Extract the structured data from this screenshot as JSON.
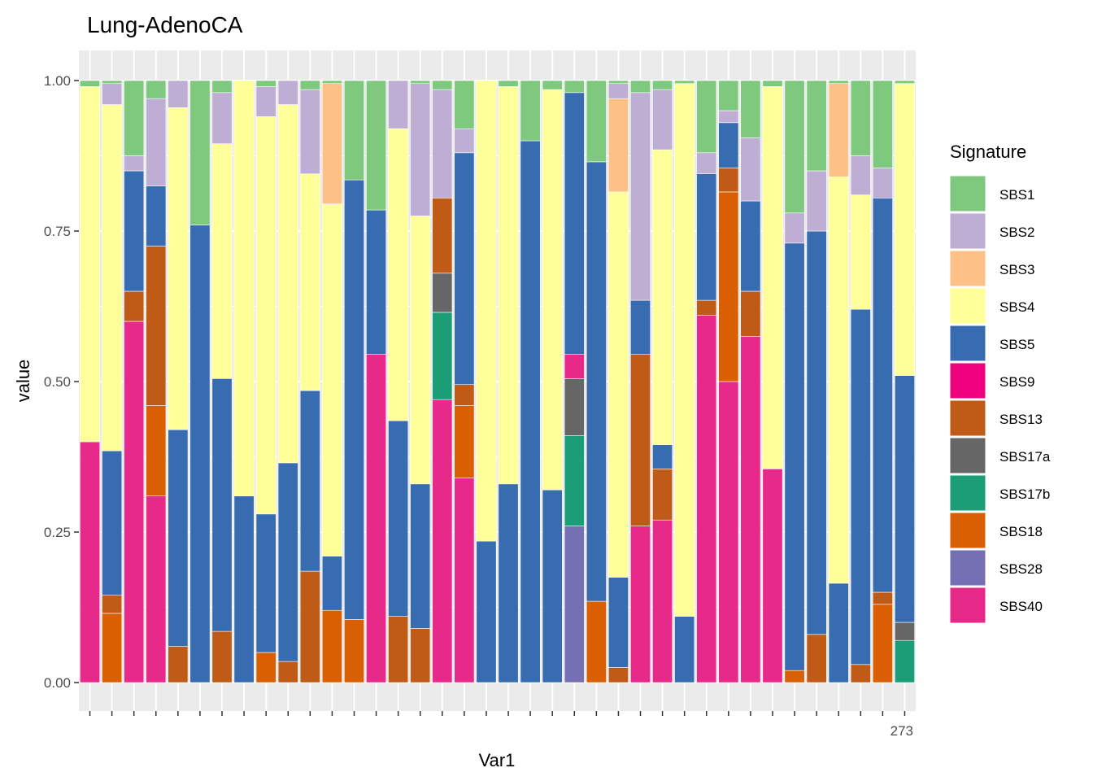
{
  "chart_data": {
    "type": "bar",
    "stacked": true,
    "title": "Lung-AdenoCA",
    "xlabel": "Var1",
    "ylabel": "value",
    "ylim": [
      0,
      1
    ],
    "yticks": [
      "0.00",
      "0.25",
      "0.50",
      "0.75",
      "1.00"
    ],
    "grid": true,
    "legend_title": "Signature",
    "legend_position": "right",
    "x_tick_labels_note": "overlapping sample identifiers, illegible; last visible fragment",
    "x_tick_last_fragment": "273",
    "n_bars": 38,
    "signatures": [
      {
        "name": "SBS1",
        "color": "#7fc97f"
      },
      {
        "name": "SBS2",
        "color": "#beaed4"
      },
      {
        "name": "SBS3",
        "color": "#fdc086"
      },
      {
        "name": "SBS4",
        "color": "#ffff99"
      },
      {
        "name": "SBS5",
        "color": "#386cb0"
      },
      {
        "name": "SBS9",
        "color": "#f0027f"
      },
      {
        "name": "SBS13",
        "color": "#bf5b17"
      },
      {
        "name": "SBS17a",
        "color": "#666666"
      },
      {
        "name": "SBS17b",
        "color": "#1b9e77"
      },
      {
        "name": "SBS18",
        "color": "#d95f02"
      },
      {
        "name": "SBS28",
        "color": "#7570b3"
      },
      {
        "name": "SBS40",
        "color": "#e7298a"
      }
    ],
    "bars": [
      [
        [
          "SBS40",
          0.4
        ],
        [
          "SBS4",
          0.59
        ],
        [
          "SBS1",
          0.01
        ]
      ],
      [
        [
          "SBS18",
          0.115
        ],
        [
          "SBS13",
          0.03
        ],
        [
          "SBS5",
          0.24
        ],
        [
          "SBS4",
          0.575
        ],
        [
          "SBS2",
          0.035
        ],
        [
          "SBS1",
          0.005
        ]
      ],
      [
        [
          "SBS40",
          0.6
        ],
        [
          "SBS13",
          0.05
        ],
        [
          "SBS5",
          0.2
        ],
        [
          "SBS2",
          0.025
        ],
        [
          "SBS1",
          0.125
        ]
      ],
      [
        [
          "SBS40",
          0.31
        ],
        [
          "SBS18",
          0.15
        ],
        [
          "SBS13",
          0.265
        ],
        [
          "SBS5",
          0.1
        ],
        [
          "SBS2",
          0.145
        ],
        [
          "SBS1",
          0.03
        ]
      ],
      [
        [
          "SBS13",
          0.06
        ],
        [
          "SBS5",
          0.36
        ],
        [
          "SBS4",
          0.535
        ],
        [
          "SBS2",
          0.045
        ]
      ],
      [
        [
          "SBS5",
          0.76
        ],
        [
          "SBS1",
          0.24
        ]
      ],
      [
        [
          "SBS13",
          0.085
        ],
        [
          "SBS5",
          0.42
        ],
        [
          "SBS4",
          0.39
        ],
        [
          "SBS2",
          0.085
        ],
        [
          "SBS1",
          0.02
        ]
      ],
      [
        [
          "SBS5",
          0.31
        ],
        [
          "SBS4",
          0.69
        ]
      ],
      [
        [
          "SBS18",
          0.05
        ],
        [
          "SBS5",
          0.23
        ],
        [
          "SBS4",
          0.66
        ],
        [
          "SBS2",
          0.05
        ],
        [
          "SBS1",
          0.01
        ]
      ],
      [
        [
          "SBS13",
          0.035
        ],
        [
          "SBS5",
          0.33
        ],
        [
          "SBS4",
          0.595
        ],
        [
          "SBS2",
          0.04
        ]
      ],
      [
        [
          "SBS13",
          0.185
        ],
        [
          "SBS5",
          0.3
        ],
        [
          "SBS4",
          0.36
        ],
        [
          "SBS2",
          0.14
        ],
        [
          "SBS1",
          0.015
        ]
      ],
      [
        [
          "SBS18",
          0.12
        ],
        [
          "SBS5",
          0.09
        ],
        [
          "SBS4",
          0.585
        ],
        [
          "SBS3",
          0.2
        ],
        [
          "SBS1",
          0.005
        ]
      ],
      [
        [
          "SBS18",
          0.105
        ],
        [
          "SBS5",
          0.73
        ],
        [
          "SBS1",
          0.165
        ]
      ],
      [
        [
          "SBS40",
          0.545
        ],
        [
          "SBS5",
          0.24
        ],
        [
          "SBS1",
          0.215
        ]
      ],
      [
        [
          "SBS13",
          0.11
        ],
        [
          "SBS5",
          0.325
        ],
        [
          "SBS4",
          0.485
        ],
        [
          "SBS2",
          0.08
        ]
      ],
      [
        [
          "SBS13",
          0.09
        ],
        [
          "SBS5",
          0.24
        ],
        [
          "SBS4",
          0.445
        ],
        [
          "SBS2",
          0.22
        ],
        [
          "SBS1",
          0.005
        ]
      ],
      [
        [
          "SBS40",
          0.47
        ],
        [
          "SBS17b",
          0.145
        ],
        [
          "SBS17a",
          0.065
        ],
        [
          "SBS13",
          0.125
        ],
        [
          "SBS2",
          0.18
        ],
        [
          "SBS1",
          0.015
        ]
      ],
      [
        [
          "SBS40",
          0.34
        ],
        [
          "SBS18",
          0.12
        ],
        [
          "SBS13",
          0.035
        ],
        [
          "SBS5",
          0.385
        ],
        [
          "SBS2",
          0.04
        ],
        [
          "SBS1",
          0.08
        ]
      ],
      [
        [
          "SBS5",
          0.235
        ],
        [
          "SBS4",
          0.765
        ]
      ],
      [
        [
          "SBS5",
          0.33
        ],
        [
          "SBS4",
          0.66
        ],
        [
          "SBS1",
          0.01
        ]
      ],
      [
        [
          "SBS5",
          0.9
        ],
        [
          "SBS1",
          0.1
        ]
      ],
      [
        [
          "SBS5",
          0.32
        ],
        [
          "SBS4",
          0.665
        ],
        [
          "SBS1",
          0.015
        ]
      ],
      [
        [
          "SBS28",
          0.26
        ],
        [
          "SBS17b",
          0.15
        ],
        [
          "SBS17a",
          0.095
        ],
        [
          "SBS40",
          0.04
        ],
        [
          "SBS5",
          0.435
        ],
        [
          "SBS1",
          0.02
        ]
      ],
      [
        [
          "SBS18",
          0.135
        ],
        [
          "SBS5",
          0.73
        ],
        [
          "SBS1",
          0.135
        ]
      ],
      [
        [
          "SBS13",
          0.025
        ],
        [
          "SBS5",
          0.15
        ],
        [
          "SBS4",
          0.64
        ],
        [
          "SBS3",
          0.155
        ],
        [
          "SBS2",
          0.025
        ],
        [
          "SBS1",
          0.005
        ]
      ],
      [
        [
          "SBS40",
          0.26
        ],
        [
          "SBS13",
          0.285
        ],
        [
          "SBS5",
          0.09
        ],
        [
          "SBS2",
          0.345
        ],
        [
          "SBS1",
          0.02
        ]
      ],
      [
        [
          "SBS40",
          0.27
        ],
        [
          "SBS13",
          0.085
        ],
        [
          "SBS5",
          0.04
        ],
        [
          "SBS4",
          0.49
        ],
        [
          "SBS2",
          0.1
        ],
        [
          "SBS1",
          0.015
        ]
      ],
      [
        [
          "SBS5",
          0.11
        ],
        [
          "SBS4",
          0.885
        ],
        [
          "SBS1",
          0.005
        ]
      ],
      [
        [
          "SBS40",
          0.61
        ],
        [
          "SBS13",
          0.025
        ],
        [
          "SBS5",
          0.21
        ],
        [
          "SBS2",
          0.035
        ],
        [
          "SBS1",
          0.12
        ]
      ],
      [
        [
          "SBS40",
          0.5
        ],
        [
          "SBS18",
          0.315
        ],
        [
          "SBS13",
          0.04
        ],
        [
          "SBS5",
          0.075
        ],
        [
          "SBS2",
          0.02
        ],
        [
          "SBS1",
          0.05
        ]
      ],
      [
        [
          "SBS40",
          0.575
        ],
        [
          "SBS13",
          0.075
        ],
        [
          "SBS5",
          0.15
        ],
        [
          "SBS2",
          0.105
        ],
        [
          "SBS1",
          0.095
        ]
      ],
      [
        [
          "SBS40",
          0.355
        ],
        [
          "SBS4",
          0.635
        ],
        [
          "SBS1",
          0.01
        ]
      ],
      [
        [
          "SBS18",
          0.02
        ],
        [
          "SBS5",
          0.71
        ],
        [
          "SBS2",
          0.05
        ],
        [
          "SBS1",
          0.22
        ]
      ],
      [
        [
          "SBS13",
          0.08
        ],
        [
          "SBS5",
          0.67
        ],
        [
          "SBS2",
          0.1
        ],
        [
          "SBS1",
          0.15
        ]
      ],
      [
        [
          "SBS5",
          0.165
        ],
        [
          "SBS4",
          0.675
        ],
        [
          "SBS3",
          0.155
        ],
        [
          "SBS1",
          0.005
        ]
      ],
      [
        [
          "SBS13",
          0.03
        ],
        [
          "SBS5",
          0.59
        ],
        [
          "SBS4",
          0.19
        ],
        [
          "SBS2",
          0.065
        ],
        [
          "SBS1",
          0.125
        ]
      ],
      [
        [
          "SBS18",
          0.13
        ],
        [
          "SBS13",
          0.02
        ],
        [
          "SBS5",
          0.655
        ],
        [
          "SBS2",
          0.05
        ],
        [
          "SBS1",
          0.145
        ]
      ],
      [
        [
          "SBS17b",
          0.07
        ],
        [
          "SBS17a",
          0.03
        ],
        [
          "SBS5",
          0.41
        ],
        [
          "SBS4",
          0.485
        ],
        [
          "SBS1",
          0.005
        ]
      ]
    ]
  }
}
